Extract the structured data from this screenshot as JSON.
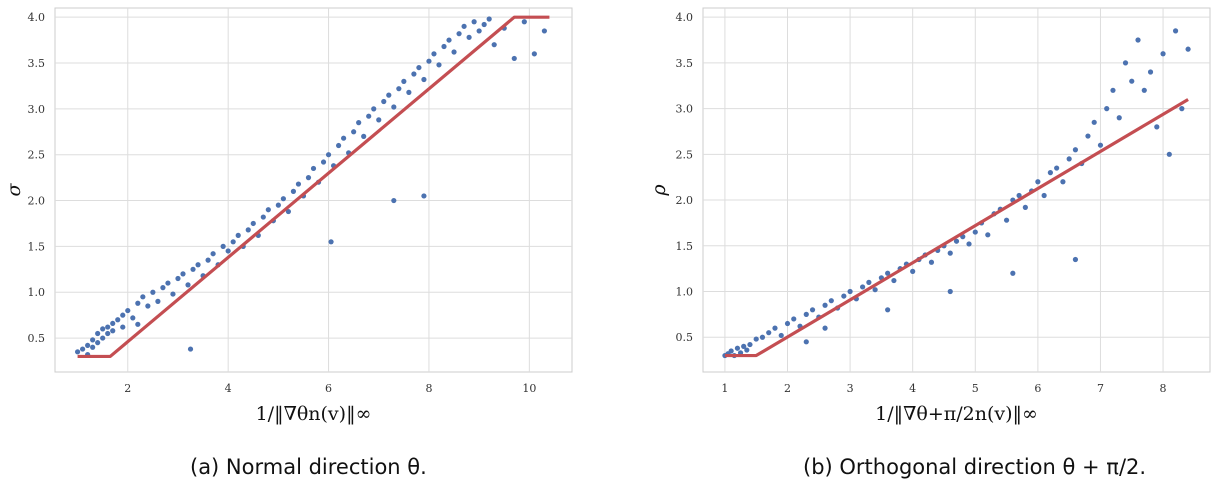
{
  "chart_data": [
    {
      "type": "scatter",
      "xlabel": "1/‖∇θn(v)‖∞",
      "ylabel": "σ",
      "caption": "(a) Normal direction θ.",
      "xlim": [
        0.55,
        10.85
      ],
      "ylim": [
        0.13,
        4.1
      ],
      "xticks": [
        2,
        4,
        6,
        8,
        10
      ],
      "yticks": [
        0.5,
        1.0,
        1.5,
        2.0,
        2.5,
        3.0,
        3.5,
        4.0
      ],
      "grid": true,
      "points_color": "#4c72b0",
      "line_color": "#c44e52",
      "fit_line": {
        "x": [
          1.0,
          1.65,
          9.7,
          10.4
        ],
        "y": [
          0.3,
          0.3,
          4.0,
          4.0
        ]
      },
      "series": [
        {
          "x": [
            1.0,
            1.1,
            1.2,
            1.2,
            1.3,
            1.3,
            1.4,
            1.4,
            1.5,
            1.5,
            1.6,
            1.6,
            1.7,
            1.7,
            1.8,
            1.9,
            1.9,
            2.0,
            2.1,
            2.2,
            2.2,
            2.3,
            2.4,
            2.5,
            2.6,
            2.7,
            2.8,
            2.9,
            3.0,
            3.1,
            3.2,
            3.3,
            3.4,
            3.5,
            3.6,
            3.7,
            3.8,
            3.9,
            4.0,
            4.1,
            4.2,
            4.3,
            4.4,
            4.5,
            4.6,
            4.7,
            4.8,
            4.9,
            5.0,
            5.1,
            5.2,
            5.3,
            5.4,
            5.5,
            5.6,
            5.7,
            5.8,
            5.9,
            6.0,
            6.1,
            6.2,
            6.3,
            6.4,
            6.5,
            6.6,
            6.7,
            6.8,
            6.9,
            7.0,
            7.1,
            7.2,
            7.3,
            7.4,
            7.5,
            7.6,
            7.7,
            7.8,
            7.9,
            8.0,
            8.1,
            8.2,
            8.3,
            8.4,
            8.5,
            8.6,
            8.7,
            8.8,
            8.9,
            9.0,
            9.1,
            9.2,
            9.3,
            9.5,
            9.7,
            9.9,
            10.1,
            10.3,
            3.25,
            6.05,
            7.3,
            7.9
          ],
          "y": [
            0.35,
            0.38,
            0.42,
            0.32,
            0.48,
            0.4,
            0.55,
            0.45,
            0.6,
            0.5,
            0.62,
            0.55,
            0.58,
            0.66,
            0.7,
            0.62,
            0.75,
            0.8,
            0.72,
            0.88,
            0.65,
            0.95,
            0.85,
            1.0,
            0.9,
            1.05,
            1.1,
            0.98,
            1.15,
            1.2,
            1.08,
            1.25,
            1.3,
            1.18,
            1.35,
            1.42,
            1.3,
            1.5,
            1.45,
            1.55,
            1.62,
            1.5,
            1.68,
            1.75,
            1.62,
            1.82,
            1.9,
            1.78,
            1.95,
            2.02,
            1.88,
            2.1,
            2.18,
            2.05,
            2.25,
            2.35,
            2.2,
            2.42,
            2.5,
            2.38,
            2.6,
            2.68,
            2.52,
            2.75,
            2.85,
            2.7,
            2.92,
            3.0,
            2.88,
            3.08,
            3.15,
            3.02,
            3.22,
            3.3,
            3.18,
            3.38,
            3.45,
            3.32,
            3.52,
            3.6,
            3.48,
            3.68,
            3.75,
            3.62,
            3.82,
            3.9,
            3.78,
            3.95,
            3.85,
            3.92,
            3.98,
            3.7,
            3.88,
            3.55,
            3.95,
            3.6,
            3.85,
            0.38,
            1.55,
            2.0,
            2.05
          ]
        }
      ]
    },
    {
      "type": "scatter",
      "xlabel": "1/‖∇θ+π/2n(v)‖∞",
      "ylabel": "ρ",
      "caption": "(b) Orthogonal direction θ + π/2.",
      "xlim": [
        0.65,
        8.75
      ],
      "ylim": [
        0.12,
        4.1
      ],
      "xticks": [
        1,
        2,
        3,
        4,
        5,
        6,
        7,
        8
      ],
      "yticks": [
        0.5,
        1.0,
        1.5,
        2.0,
        2.5,
        3.0,
        3.5,
        4.0
      ],
      "grid": true,
      "points_color": "#4c72b0",
      "line_color": "#c44e52",
      "fit_line": {
        "x": [
          1.0,
          1.5,
          8.4
        ],
        "y": [
          0.3,
          0.3,
          3.1
        ]
      },
      "series": [
        {
          "x": [
            1.0,
            1.05,
            1.1,
            1.15,
            1.2,
            1.25,
            1.3,
            1.35,
            1.4,
            1.5,
            1.6,
            1.7,
            1.8,
            1.9,
            2.0,
            2.1,
            2.2,
            2.3,
            2.4,
            2.5,
            2.6,
            2.7,
            2.8,
            2.9,
            3.0,
            3.1,
            3.2,
            3.3,
            3.4,
            3.5,
            3.6,
            3.7,
            3.8,
            3.9,
            4.0,
            4.1,
            4.2,
            4.3,
            4.4,
            4.5,
            4.6,
            4.7,
            4.8,
            4.9,
            5.0,
            5.1,
            5.2,
            5.3,
            5.4,
            5.5,
            5.6,
            5.7,
            5.8,
            5.9,
            6.0,
            6.1,
            6.2,
            6.3,
            6.4,
            6.5,
            6.6,
            6.7,
            6.8,
            6.9,
            7.0,
            7.1,
            7.2,
            7.3,
            7.4,
            7.5,
            7.6,
            7.7,
            7.8,
            7.9,
            8.0,
            8.1,
            8.2,
            8.3,
            8.4,
            2.3,
            2.6,
            3.6,
            4.6,
            5.6,
            6.6
          ],
          "y": [
            0.3,
            0.32,
            0.35,
            0.3,
            0.38,
            0.33,
            0.4,
            0.36,
            0.42,
            0.48,
            0.5,
            0.55,
            0.6,
            0.52,
            0.65,
            0.7,
            0.62,
            0.75,
            0.8,
            0.72,
            0.85,
            0.9,
            0.82,
            0.95,
            1.0,
            0.92,
            1.05,
            1.1,
            1.02,
            1.15,
            1.2,
            1.12,
            1.25,
            1.3,
            1.22,
            1.35,
            1.4,
            1.32,
            1.45,
            1.5,
            1.42,
            1.55,
            1.6,
            1.52,
            1.65,
            1.75,
            1.62,
            1.85,
            1.9,
            1.78,
            2.0,
            2.05,
            1.92,
            2.1,
            2.2,
            2.05,
            2.3,
            2.35,
            2.2,
            2.45,
            2.55,
            2.4,
            2.7,
            2.85,
            2.6,
            3.0,
            3.2,
            2.9,
            3.5,
            3.3,
            3.75,
            3.2,
            3.4,
            2.8,
            3.6,
            2.5,
            3.85,
            3.0,
            3.65,
            0.45,
            0.6,
            0.8,
            1.0,
            1.2,
            1.35
          ]
        }
      ]
    }
  ]
}
